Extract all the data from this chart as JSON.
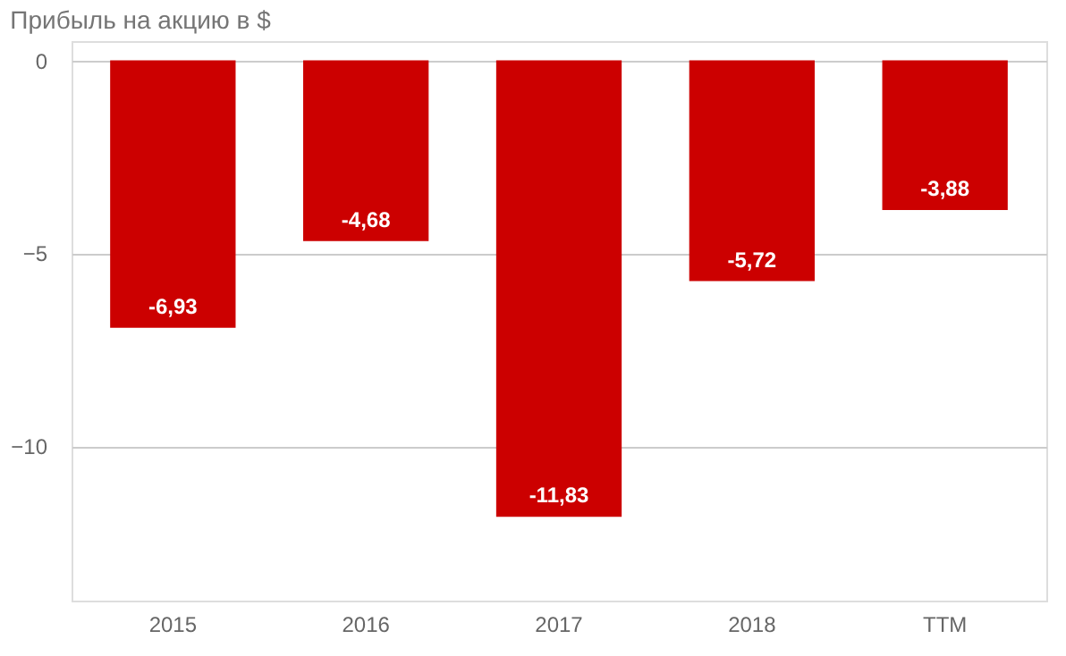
{
  "chart_data": {
    "type": "bar",
    "title": "Прибыль на акцию в $",
    "categories": [
      "2015",
      "2016",
      "2017",
      "2018",
      "TTM"
    ],
    "values": [
      -6.93,
      -4.68,
      -11.83,
      -5.72,
      -3.88
    ],
    "value_labels": [
      "-6,93",
      "-4,68",
      "-11,83",
      "-5,72",
      "-3,88"
    ],
    "color": "#cc0000",
    "ylim": [
      -14,
      0.5
    ],
    "yticks": [
      0,
      -5,
      -10
    ],
    "grid": "y"
  }
}
